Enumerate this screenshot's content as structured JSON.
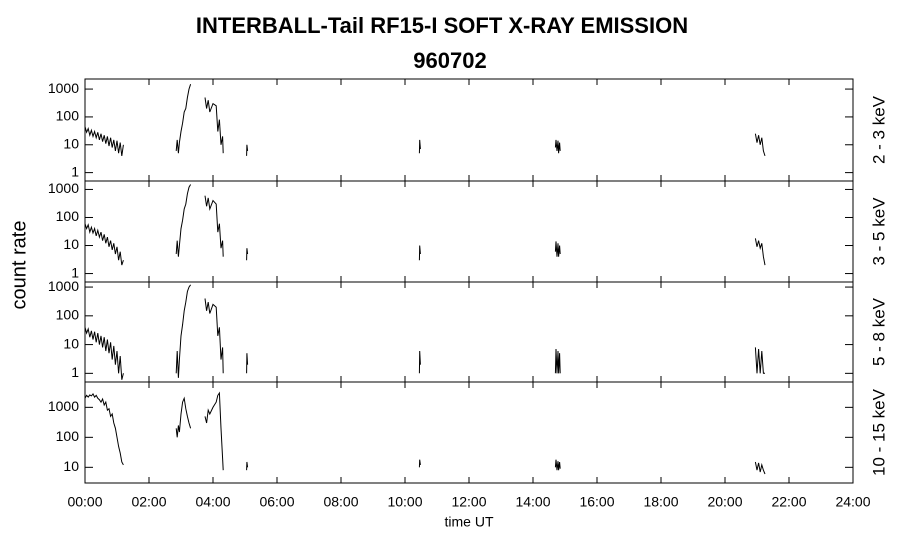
{
  "chart_data": [
    {
      "type": "line",
      "title": "INTERBALL-Tail RF15-I SOFT X-RAY EMISSION",
      "subtitle": "960702",
      "y_label": "count rate",
      "label": "2 - 3 keV",
      "log_scale": true,
      "xlim": [
        0,
        24
      ],
      "xticks": [
        0,
        2,
        4,
        6,
        8,
        10,
        12,
        14,
        16,
        18,
        20,
        22,
        24
      ],
      "ylim": [
        0.5,
        2300
      ],
      "yticks": [
        1,
        10,
        100,
        1000
      ],
      "x": [
        0,
        0.05,
        0.1,
        0.15,
        0.2,
        0.25,
        0.3,
        0.35,
        0.4,
        0.45,
        0.5,
        0.55,
        0.6,
        0.65,
        0.7,
        0.75,
        0.8,
        0.85,
        0.9,
        0.95,
        1.0,
        1.05,
        1.1,
        1.15,
        1.2,
        1.22,
        2.85,
        2.88,
        2.92,
        2.95,
        3.0,
        3.05,
        3.1,
        3.15,
        3.2,
        3.25,
        3.3,
        3.5,
        3.75,
        3.8,
        3.85,
        3.9,
        4.0,
        4.1,
        4.15,
        4.2,
        4.25,
        4.3,
        4.32,
        4.4,
        5.05,
        5.06,
        5.08,
        5.2,
        10.45,
        10.46,
        10.48,
        10.6,
        14.7,
        14.72,
        14.75,
        14.78,
        14.8,
        14.83,
        14.85,
        15.0,
        20.95,
        21.0,
        21.05,
        21.1,
        21.15,
        21.2,
        21.25
      ],
      "series": [
        {
          "color": "#000000",
          "values": [
            45,
            28,
            38,
            22,
            33,
            20,
            30,
            18,
            28,
            15,
            25,
            13,
            22,
            11,
            20,
            9,
            18,
            8,
            15,
            6,
            14,
            5,
            12,
            4,
            10,
            null,
            6,
            15,
            5,
            12,
            30,
            60,
            150,
            200,
            500,
            1000,
            1500,
            null,
            500,
            200,
            400,
            150,
            300,
            250,
            30,
            80,
            10,
            20,
            5,
            null,
            4,
            10,
            6,
            null,
            5,
            15,
            7,
            null,
            8,
            15,
            6,
            14,
            5,
            12,
            6,
            null,
            25,
            12,
            22,
            10,
            18,
            6,
            4
          ]
        }
      ]
    },
    {
      "type": "line",
      "label": "3 - 5 keV",
      "log_scale": true,
      "xlim": [
        0,
        24
      ],
      "xticks": [
        0,
        2,
        4,
        6,
        8,
        10,
        12,
        14,
        16,
        18,
        20,
        22,
        24
      ],
      "ylim": [
        0.5,
        2000
      ],
      "yticks": [
        1,
        10,
        100,
        1000
      ],
      "x": [
        0,
        0.05,
        0.1,
        0.15,
        0.2,
        0.25,
        0.3,
        0.35,
        0.4,
        0.45,
        0.5,
        0.55,
        0.6,
        0.65,
        0.7,
        0.75,
        0.8,
        0.85,
        0.9,
        0.95,
        1.0,
        1.05,
        1.1,
        1.15,
        1.2,
        1.22,
        2.85,
        2.88,
        2.92,
        2.95,
        3.0,
        3.05,
        3.1,
        3.15,
        3.2,
        3.25,
        3.3,
        3.5,
        3.75,
        3.8,
        3.85,
        3.9,
        4.0,
        4.1,
        4.15,
        4.2,
        4.25,
        4.3,
        4.32,
        4.4,
        5.05,
        5.06,
        5.08,
        5.2,
        10.45,
        10.46,
        10.48,
        10.6,
        14.7,
        14.72,
        14.75,
        14.78,
        14.8,
        14.83,
        14.85,
        15.0,
        20.95,
        21.0,
        21.05,
        21.1,
        21.15,
        21.2,
        21.25
      ],
      "series": [
        {
          "color": "#000000",
          "values": [
            60,
            40,
            55,
            30,
            45,
            28,
            40,
            22,
            35,
            20,
            30,
            15,
            25,
            12,
            20,
            9,
            15,
            7,
            12,
            5,
            9,
            3,
            6,
            2,
            3,
            null,
            5,
            15,
            4,
            10,
            40,
            80,
            200,
            300,
            700,
            1200,
            1500,
            null,
            600,
            250,
            500,
            200,
            400,
            300,
            30,
            60,
            8,
            15,
            4,
            null,
            3,
            8,
            5,
            null,
            3,
            10,
            5,
            null,
            6,
            14,
            4,
            12,
            4,
            10,
            5,
            null,
            18,
            9,
            15,
            8,
            12,
            4,
            2
          ]
        }
      ]
    },
    {
      "type": "line",
      "label": "5 - 8 keV",
      "log_scale": true,
      "xlim": [
        0,
        24
      ],
      "xticks": [
        0,
        2,
        4,
        6,
        8,
        10,
        12,
        14,
        16,
        18,
        20,
        22,
        24
      ],
      "ylim": [
        0.5,
        1500
      ],
      "yticks": [
        1,
        10,
        100,
        1000
      ],
      "x": [
        0,
        0.05,
        0.1,
        0.15,
        0.2,
        0.25,
        0.3,
        0.35,
        0.4,
        0.45,
        0.5,
        0.55,
        0.6,
        0.65,
        0.7,
        0.75,
        0.8,
        0.85,
        0.9,
        0.95,
        1.0,
        1.05,
        1.1,
        1.15,
        1.2,
        1.22,
        2.85,
        2.88,
        2.92,
        2.95,
        3.0,
        3.05,
        3.1,
        3.15,
        3.2,
        3.25,
        3.3,
        3.5,
        3.75,
        3.8,
        3.85,
        3.9,
        4.0,
        4.1,
        4.15,
        4.2,
        4.25,
        4.3,
        4.32,
        4.4,
        5.05,
        5.06,
        5.08,
        5.2,
        10.45,
        10.46,
        10.48,
        10.6,
        14.7,
        14.72,
        14.75,
        14.78,
        14.8,
        14.83,
        14.85,
        15.0,
        20.95,
        21.0,
        21.05,
        21.1,
        21.15,
        21.2,
        21.25
      ],
      "series": [
        {
          "color": "#000000",
          "values": [
            40,
            25,
            35,
            18,
            30,
            15,
            28,
            12,
            25,
            10,
            20,
            8,
            18,
            6,
            15,
            5,
            12,
            3,
            9,
            2,
            6,
            1,
            4,
            0.6,
            1,
            null,
            1,
            6,
            0.7,
            3,
            20,
            50,
            150,
            300,
            700,
            1000,
            1200,
            null,
            400,
            150,
            300,
            120,
            250,
            200,
            20,
            40,
            3,
            8,
            1,
            null,
            1,
            5,
            2,
            null,
            1,
            6,
            2,
            null,
            1,
            7,
            1,
            6,
            1,
            5,
            1,
            null,
            8,
            1,
            7,
            1,
            6,
            1,
            1
          ]
        }
      ]
    },
    {
      "type": "line",
      "label": "10 - 15 keV",
      "x_label": "time UT",
      "log_scale": true,
      "xlim": [
        0,
        24
      ],
      "xticks": [
        {
          "value": 0,
          "label": "00:00"
        },
        {
          "value": 2,
          "label": "02:00"
        },
        {
          "value": 4,
          "label": "04:00"
        },
        {
          "value": 6,
          "label": "06:00"
        },
        {
          "value": 8,
          "label": "08:00"
        },
        {
          "value": 10,
          "label": "10:00"
        },
        {
          "value": 12,
          "label": "12:00"
        },
        {
          "value": 14,
          "label": "14:00"
        },
        {
          "value": 16,
          "label": "16:00"
        },
        {
          "value": 18,
          "label": "18:00"
        },
        {
          "value": 20,
          "label": "20:00"
        },
        {
          "value": 22,
          "label": "22:00"
        },
        {
          "value": 24,
          "label": "24:00"
        }
      ],
      "ylim": [
        3,
        7000
      ],
      "yticks": [
        10,
        100,
        1000
      ],
      "x": [
        0,
        0.05,
        0.1,
        0.15,
        0.2,
        0.25,
        0.3,
        0.35,
        0.4,
        0.45,
        0.5,
        0.55,
        0.6,
        0.65,
        0.7,
        0.75,
        0.8,
        0.85,
        0.9,
        0.95,
        1.0,
        1.05,
        1.1,
        1.15,
        1.2,
        1.22,
        2.85,
        2.88,
        2.92,
        2.95,
        3.0,
        3.05,
        3.1,
        3.15,
        3.2,
        3.25,
        3.3,
        3.5,
        3.75,
        3.8,
        3.85,
        3.9,
        4.0,
        4.1,
        4.15,
        4.2,
        4.25,
        4.3,
        4.32,
        4.4,
        5.05,
        5.06,
        5.08,
        5.2,
        10.45,
        10.46,
        10.48,
        10.6,
        14.7,
        14.72,
        14.75,
        14.78,
        14.8,
        14.83,
        14.85,
        15.0,
        20.95,
        21.0,
        21.05,
        21.1,
        21.15,
        21.2,
        21.25
      ],
      "series": [
        {
          "color": "#000000",
          "values": [
            2000,
            2500,
            2200,
            2600,
            2400,
            2800,
            2200,
            2500,
            2000,
            1800,
            1500,
            1900,
            1200,
            1500,
            800,
            900,
            500,
            600,
            300,
            200,
            100,
            50,
            30,
            15,
            12,
            null,
            200,
            100,
            250,
            150,
            600,
            1500,
            2000,
            900,
            500,
            300,
            200,
            null,
            500,
            300,
            800,
            600,
            1000,
            1500,
            2500,
            3000,
            200,
            20,
            8,
            null,
            8,
            15,
            10,
            null,
            10,
            18,
            12,
            null,
            10,
            18,
            8,
            16,
            8,
            15,
            9,
            null,
            15,
            8,
            14,
            7,
            12,
            8,
            6
          ]
        }
      ]
    }
  ]
}
